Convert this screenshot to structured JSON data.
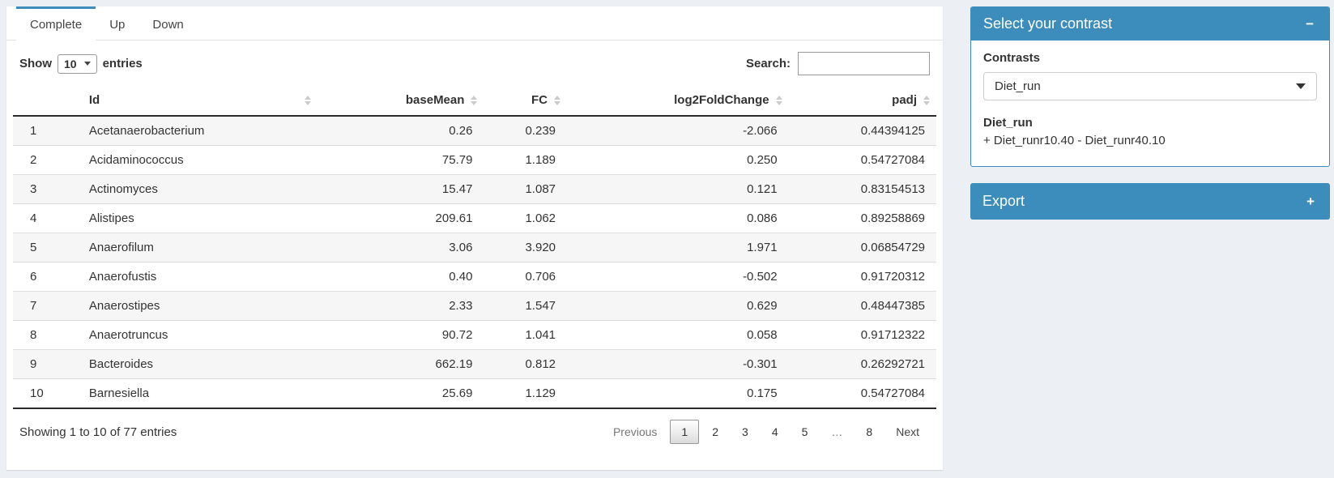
{
  "page": {
    "background": "#ecf0f5",
    "accent": "#3c8dbc"
  },
  "tabs": [
    {
      "label": "Complete",
      "active": true
    },
    {
      "label": "Up",
      "active": false
    },
    {
      "label": "Down",
      "active": false
    }
  ],
  "length_control": {
    "prefix": "Show",
    "value": "10",
    "suffix": "entries"
  },
  "search": {
    "label": "Search:",
    "value": "",
    "placeholder": ""
  },
  "table": {
    "columns": {
      "id": "Id",
      "basemean": "baseMean",
      "fc": "FC",
      "log2fc": "log2FoldChange",
      "padj": "padj"
    },
    "rows": [
      {
        "index": "1",
        "id": "Acetanaerobacterium",
        "baseMean": "0.26",
        "fc": "0.239",
        "log2fc": "-2.066",
        "padj": "0.44394125"
      },
      {
        "index": "2",
        "id": "Acidaminococcus",
        "baseMean": "75.79",
        "fc": "1.189",
        "log2fc": "0.250",
        "padj": "0.54727084"
      },
      {
        "index": "3",
        "id": "Actinomyces",
        "baseMean": "15.47",
        "fc": "1.087",
        "log2fc": "0.121",
        "padj": "0.83154513"
      },
      {
        "index": "4",
        "id": "Alistipes",
        "baseMean": "209.61",
        "fc": "1.062",
        "log2fc": "0.086",
        "padj": "0.89258869"
      },
      {
        "index": "5",
        "id": "Anaerofilum",
        "baseMean": "3.06",
        "fc": "3.920",
        "log2fc": "1.971",
        "padj": "0.06854729"
      },
      {
        "index": "6",
        "id": "Anaerofustis",
        "baseMean": "0.40",
        "fc": "0.706",
        "log2fc": "-0.502",
        "padj": "0.91720312"
      },
      {
        "index": "7",
        "id": "Anaerostipes",
        "baseMean": "2.33",
        "fc": "1.547",
        "log2fc": "0.629",
        "padj": "0.48447385"
      },
      {
        "index": "8",
        "id": "Anaerotruncus",
        "baseMean": "90.72",
        "fc": "1.041",
        "log2fc": "0.058",
        "padj": "0.91712322"
      },
      {
        "index": "9",
        "id": "Bacteroides",
        "baseMean": "662.19",
        "fc": "0.812",
        "log2fc": "-0.301",
        "padj": "0.26292721"
      },
      {
        "index": "10",
        "id": "Barnesiella",
        "baseMean": "25.69",
        "fc": "1.129",
        "log2fc": "0.175",
        "padj": "0.54727084"
      }
    ]
  },
  "footer": {
    "info": "Showing 1 to 10 of 77 entries",
    "pagination": {
      "previous": "Previous",
      "pages": [
        {
          "label": "1",
          "current": true
        },
        {
          "label": "2",
          "current": false
        },
        {
          "label": "3",
          "current": false
        },
        {
          "label": "4",
          "current": false
        },
        {
          "label": "5",
          "current": false
        },
        {
          "label": "…",
          "current": false
        },
        {
          "label": "8",
          "current": false
        }
      ],
      "next": "Next"
    }
  },
  "contrast_box": {
    "title": "Select your contrast",
    "collapse_icon": "−",
    "label": "Contrasts",
    "selected_value": "Diet_run",
    "detail_title": "Diet_run",
    "detail_text": "+ Diet_runr10.40 - Diet_runr40.10"
  },
  "export_box": {
    "title": "Export",
    "expand_icon": "+"
  }
}
